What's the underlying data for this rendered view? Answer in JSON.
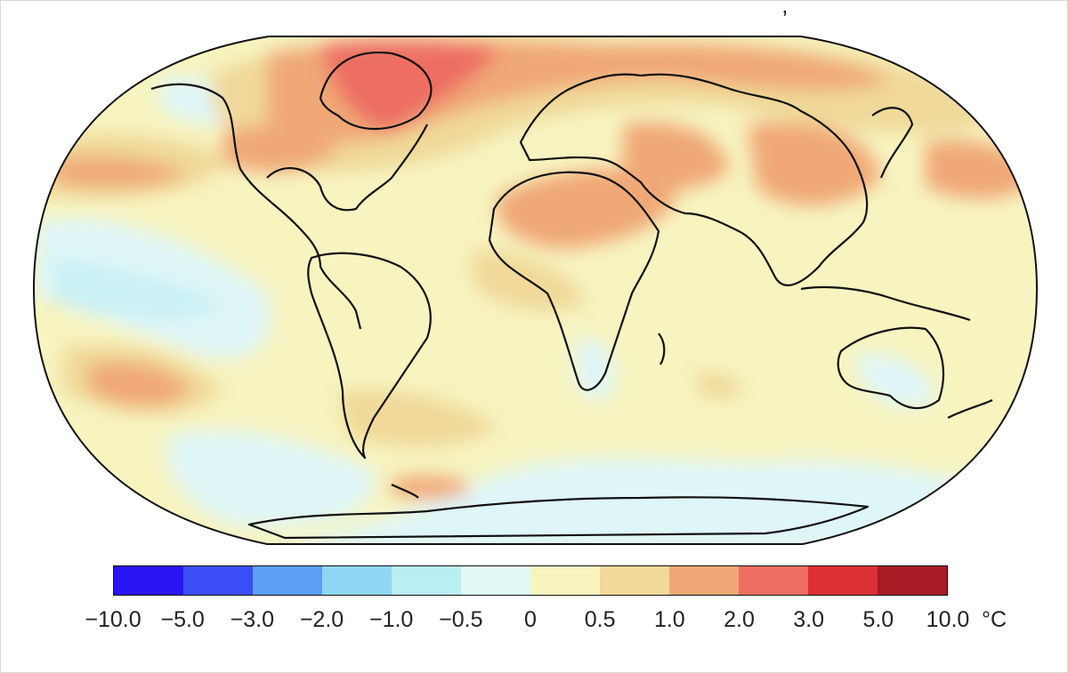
{
  "map": {
    "projection": "Robinson",
    "background_anomaly_color": "#f7f4c0",
    "ocean_cool_color": "#dff6f8",
    "regions": [
      {
        "name": "pacific-cool-anomaly",
        "level": "-0.5 to 0"
      },
      {
        "name": "north-atlantic-warm-anomaly",
        "level": "0.5 to 1.0"
      },
      {
        "name": "arctic-greenland-hot-anomaly",
        "level": "2.0 to 5.0"
      },
      {
        "name": "north-africa-middle-east-warm-anomaly",
        "level": "1.0 to 2.0"
      },
      {
        "name": "central-asia-warm-anomaly",
        "level": "1.0 to 2.0"
      },
      {
        "name": "south-pacific-warm-anomaly",
        "level": "1.0 to 2.0"
      },
      {
        "name": "southern-ocean-cool-anomaly",
        "level": "-0.5 to 0"
      }
    ]
  },
  "legend": {
    "colors": [
      "#2a14f2",
      "#3b4df5",
      "#5d9ef7",
      "#8fd6f4",
      "#b9eef3",
      "#e0f8f6",
      "#f7f4c0",
      "#f0d99a",
      "#f0a877",
      "#ee6e63",
      "#dc2f36",
      "#a81a24"
    ],
    "tick_labels": [
      "−10.0",
      "−5.0",
      "−3.0",
      "−2.0",
      "−1.0",
      "−0.5",
      "0",
      "0.5",
      "1.0",
      "2.0",
      "3.0",
      "5.0",
      "10.0"
    ],
    "unit": "°C"
  },
  "stray_mark": "’"
}
